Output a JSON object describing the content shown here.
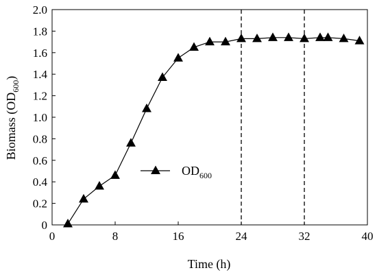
{
  "chart_data": {
    "type": "line",
    "title": "",
    "xlabel": "Time (h)",
    "ylabel_main": "Biomass (OD",
    "ylabel_sub": "600",
    "ylabel_end": ")",
    "xlim": [
      0,
      40
    ],
    "ylim": [
      0,
      2.0
    ],
    "x_ticks": [
      0,
      8,
      16,
      24,
      32,
      40
    ],
    "y_ticks": [
      0,
      0.2,
      0.4,
      0.6,
      0.8,
      1.0,
      1.2,
      1.4,
      1.6,
      1.8,
      2.0
    ],
    "x_tick_labels": [
      "0",
      "8",
      "16",
      "24",
      "32",
      "40"
    ],
    "y_tick_labels": [
      "0",
      "0.2",
      "0.4",
      "0.6",
      "0.8",
      "1.0",
      "1.2",
      "1.4",
      "1.6",
      "1.8",
      "2.0"
    ],
    "grid": false,
    "legend_position": "middle-left",
    "vertical_dashed_lines": [
      24,
      32
    ],
    "series": [
      {
        "name_main": "OD",
        "name_sub": "600",
        "marker": "triangle",
        "color": "#000000",
        "x": [
          2,
          4,
          6,
          8,
          10,
          12,
          14,
          16,
          18,
          20,
          22,
          24,
          26,
          28,
          30,
          32,
          34,
          35,
          37,
          39
        ],
        "y": [
          0.01,
          0.24,
          0.36,
          0.46,
          0.76,
          1.08,
          1.37,
          1.55,
          1.65,
          1.7,
          1.7,
          1.73,
          1.73,
          1.74,
          1.74,
          1.73,
          1.74,
          1.74,
          1.73,
          1.71
        ]
      }
    ]
  }
}
